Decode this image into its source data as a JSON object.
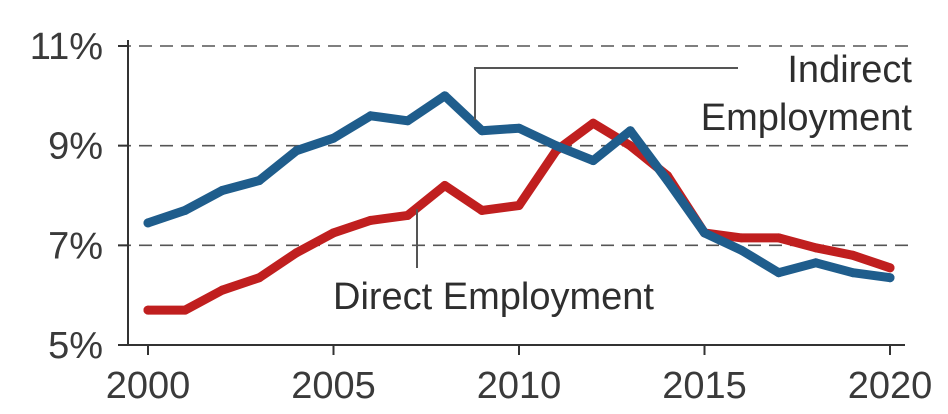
{
  "chart_data": {
    "type": "line",
    "x": [
      2000,
      2001,
      2002,
      2003,
      2004,
      2005,
      2006,
      2007,
      2008,
      2009,
      2010,
      2011,
      2012,
      2013,
      2014,
      2015,
      2016,
      2017,
      2018,
      2019,
      2020
    ],
    "series": [
      {
        "name": "Indirect Employment",
        "color": "#1f5d8c",
        "values": [
          7.45,
          7.7,
          8.1,
          8.3,
          8.9,
          9.15,
          9.6,
          9.5,
          10.0,
          9.3,
          9.35,
          9.0,
          8.7,
          9.3,
          8.3,
          7.25,
          6.9,
          6.45,
          6.65,
          6.45,
          6.35
        ]
      },
      {
        "name": "Direct Employment",
        "color": "#c01f1f",
        "values": [
          5.7,
          5.7,
          6.1,
          6.35,
          6.85,
          7.25,
          7.5,
          7.6,
          8.2,
          7.7,
          7.8,
          8.9,
          9.45,
          9.0,
          8.4,
          7.25,
          7.15,
          7.15,
          6.95,
          6.8,
          6.55
        ]
      }
    ],
    "xlim": [
      2000,
      2020
    ],
    "ylim": [
      5,
      11
    ],
    "x_ticks": [
      "2000",
      "2005",
      "2010",
      "2015",
      "2020"
    ],
    "y_ticks": [
      "5%",
      "7%",
      "9%",
      "11%"
    ],
    "gridlines": "dashed at 7%, 9%, 11%",
    "annotations": [
      {
        "text_line1": "Indirect",
        "text_line2": "Employment",
        "series": "Indirect Employment"
      },
      {
        "text": "Direct Employment",
        "series": "Direct Employment"
      }
    ]
  }
}
